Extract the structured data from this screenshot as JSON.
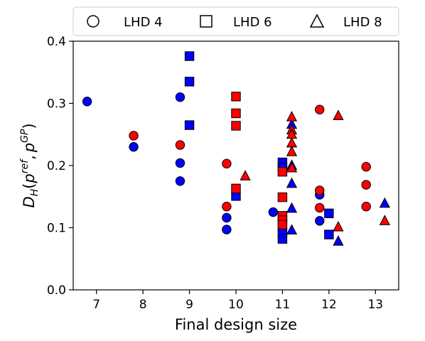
{
  "chart_data": {
    "type": "scatter",
    "title": "",
    "xlabel": "Final design size",
    "ylabel_tex": {
      "base": "D",
      "base_sub": "H",
      "open": "(",
      "arg1": "p",
      "arg1_sup": "ref",
      "sep": ",",
      "arg2": "p",
      "arg2_sup": "GP",
      "close": ")"
    },
    "xlim": [
      6.5,
      13.5
    ],
    "ylim": [
      0.0,
      0.4
    ],
    "xticks": [
      7,
      8,
      9,
      10,
      11,
      12,
      13
    ],
    "yticks": [
      0.0,
      0.1,
      0.2,
      0.3,
      0.4
    ],
    "xtick_labels": [
      "7",
      "8",
      "9",
      "10",
      "11",
      "12",
      "13"
    ],
    "ytick_labels": [
      "0.0",
      "0.1",
      "0.2",
      "0.3",
      "0.4"
    ],
    "grid": false,
    "legend_placement": "top, above plot, horizontal",
    "colors": {
      "blue": "#0000ff",
      "red": "#ff0000",
      "edge": "#000000"
    },
    "legend": [
      {
        "label": "LHD 4",
        "marker": "circle"
      },
      {
        "label": "LHD 6",
        "marker": "square"
      },
      {
        "label": "LHD 8",
        "marker": "triangle"
      }
    ],
    "series": [
      {
        "marker": "circle",
        "color": "blue",
        "points": [
          [
            6.8,
            0.303
          ],
          [
            7.8,
            0.23
          ],
          [
            8.8,
            0.31
          ],
          [
            8.8,
            0.204
          ],
          [
            8.8,
            0.175
          ],
          [
            9.8,
            0.116
          ],
          [
            9.8,
            0.097
          ],
          [
            10.8,
            0.125
          ],
          [
            11.8,
            0.153
          ],
          [
            11.8,
            0.111
          ]
        ]
      },
      {
        "marker": "circle",
        "color": "red",
        "points": [
          [
            7.8,
            0.248
          ],
          [
            8.8,
            0.233
          ],
          [
            9.8,
            0.203
          ],
          [
            9.8,
            0.134
          ],
          [
            11.8,
            0.29
          ],
          [
            11.8,
            0.16
          ],
          [
            11.8,
            0.132
          ],
          [
            12.8,
            0.198
          ],
          [
            12.8,
            0.169
          ],
          [
            12.8,
            0.134
          ]
        ]
      },
      {
        "marker": "square",
        "color": "blue",
        "points": [
          [
            9.0,
            0.376
          ],
          [
            9.0,
            0.335
          ],
          [
            9.0,
            0.265
          ],
          [
            10.0,
            0.151
          ],
          [
            11.0,
            0.205
          ],
          [
            11.0,
            0.197
          ],
          [
            11.0,
            0.092
          ],
          [
            11.0,
            0.082
          ],
          [
            12.0,
            0.123
          ],
          [
            12.0,
            0.089
          ]
        ]
      },
      {
        "marker": "square",
        "color": "red",
        "points": [
          [
            10.0,
            0.311
          ],
          [
            10.0,
            0.284
          ],
          [
            10.0,
            0.264
          ],
          [
            10.0,
            0.163
          ],
          [
            11.0,
            0.19
          ],
          [
            11.0,
            0.149
          ],
          [
            11.0,
            0.119
          ],
          [
            11.0,
            0.112
          ],
          [
            11.0,
            0.105
          ]
        ]
      },
      {
        "marker": "triangle",
        "color": "blue",
        "points": [
          [
            11.2,
            0.266
          ],
          [
            11.2,
            0.2
          ],
          [
            11.2,
            0.171
          ],
          [
            11.2,
            0.131
          ],
          [
            11.2,
            0.096
          ],
          [
            12.2,
            0.078
          ],
          [
            13.2,
            0.139
          ]
        ]
      },
      {
        "marker": "triangle",
        "color": "red",
        "points": [
          [
            10.2,
            0.183
          ],
          [
            11.2,
            0.278
          ],
          [
            11.2,
            0.257
          ],
          [
            11.2,
            0.25
          ],
          [
            11.2,
            0.236
          ],
          [
            11.2,
            0.222
          ],
          [
            11.2,
            0.196
          ],
          [
            12.2,
            0.28
          ],
          [
            12.2,
            0.101
          ],
          [
            13.2,
            0.111
          ]
        ]
      }
    ]
  }
}
